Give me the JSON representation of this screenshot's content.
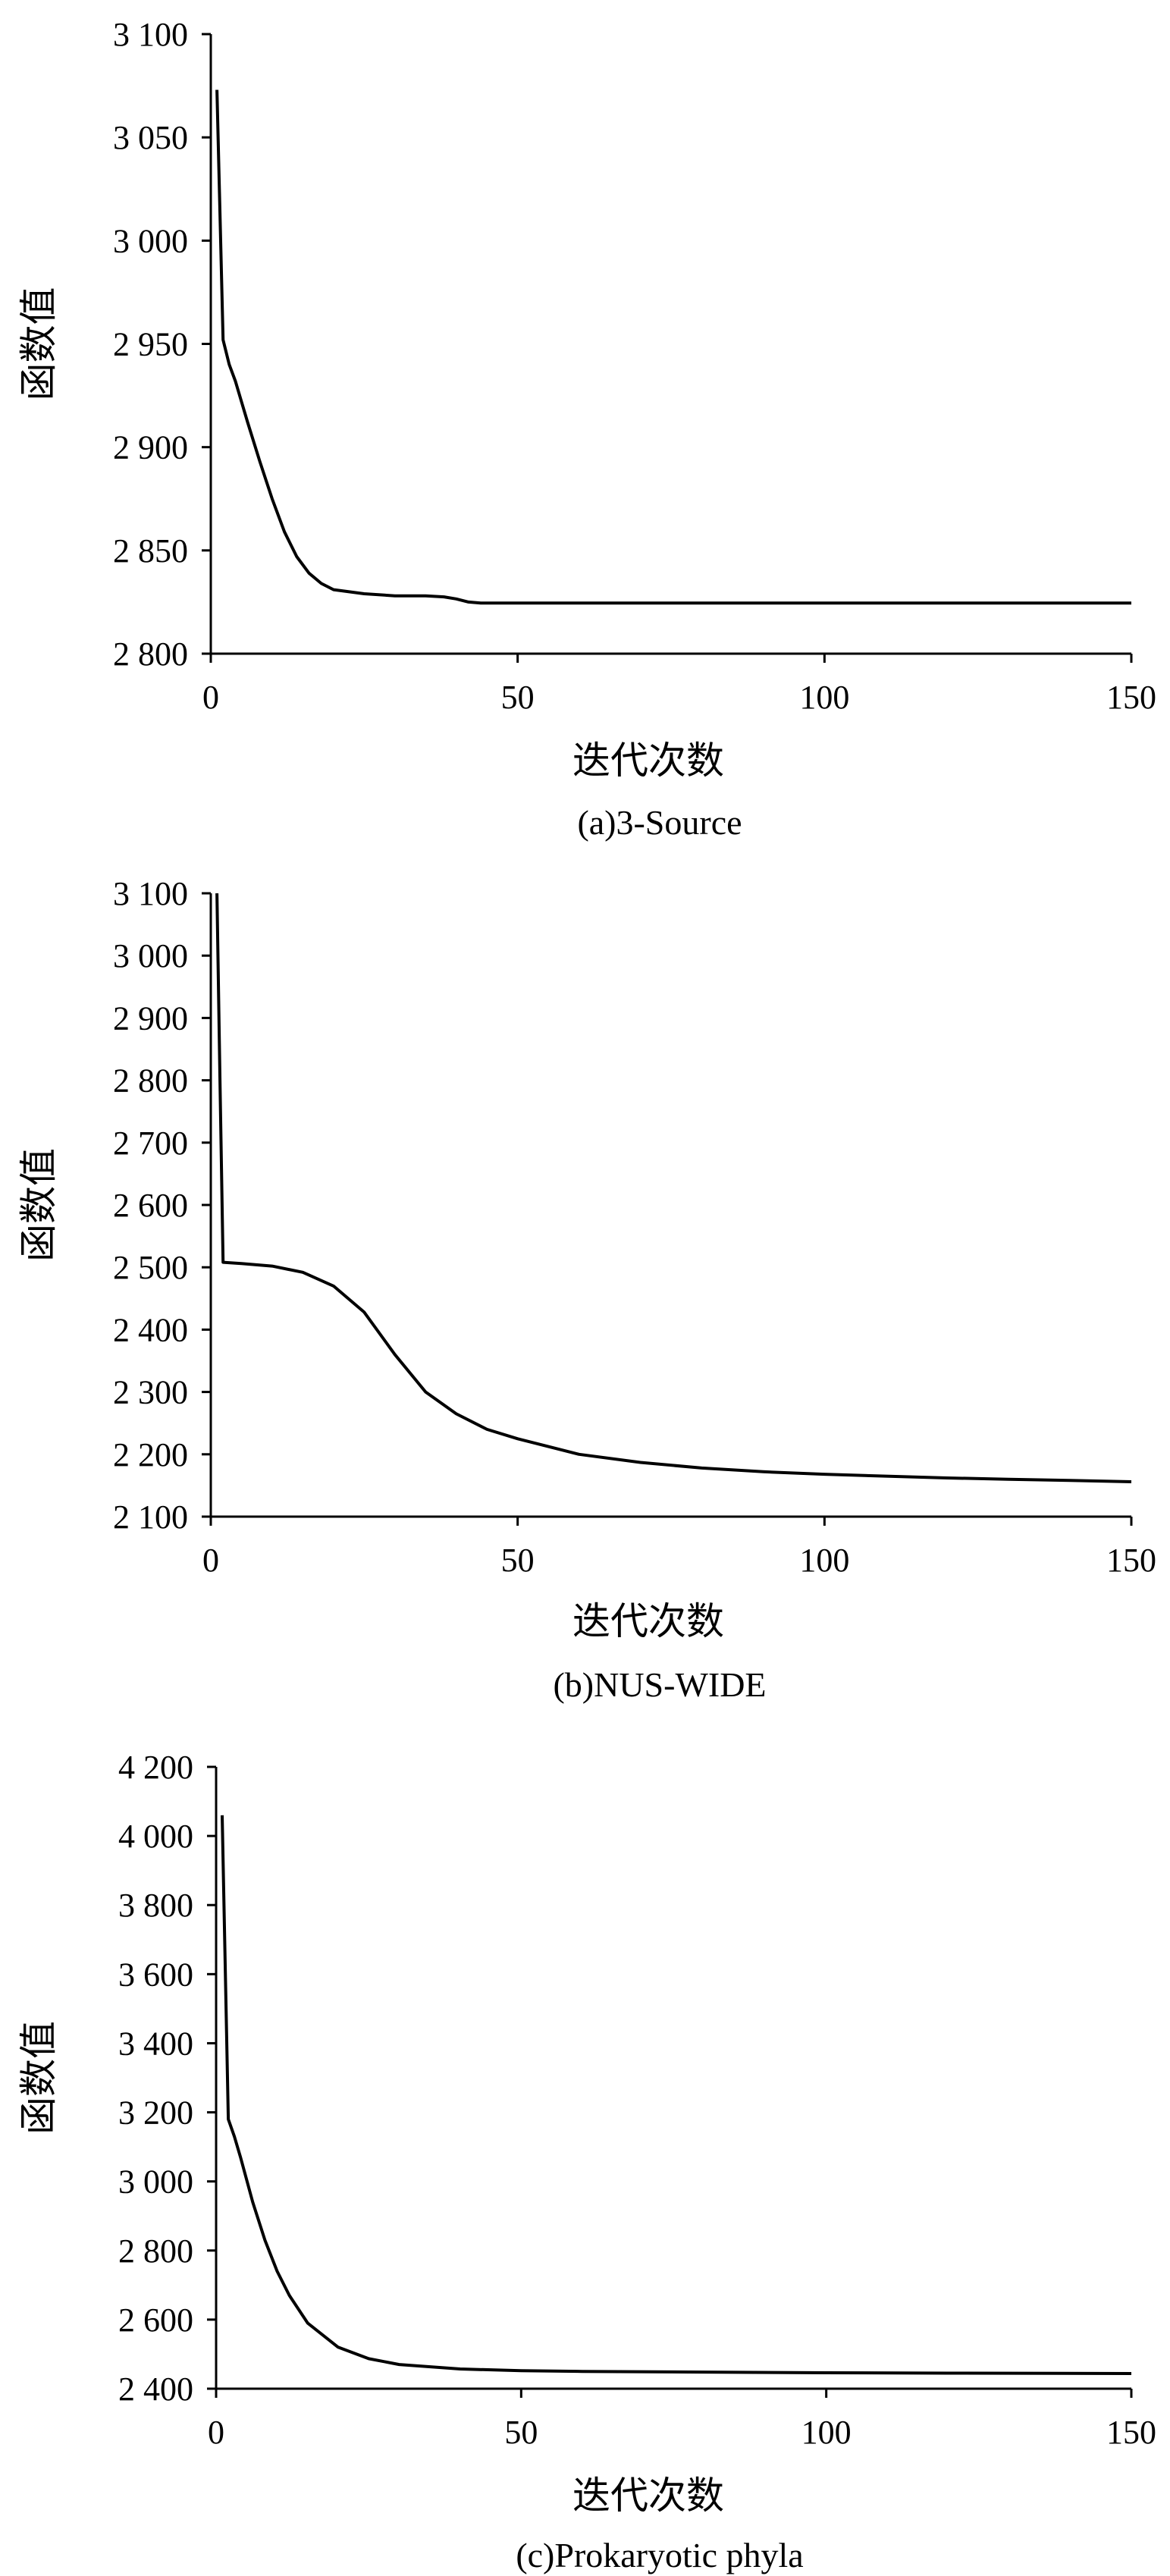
{
  "chart_data": [
    {
      "type": "line",
      "title": "(a)3-Source",
      "xlabel": "迭代次数",
      "ylabel": "函数值",
      "xlim": [
        0,
        150
      ],
      "ylim": [
        2800,
        3100
      ],
      "xticks": [
        0,
        50,
        100,
        150
      ],
      "xtick_labels": [
        "0",
        "50",
        "100",
        "150"
      ],
      "yticks": [
        2800,
        2850,
        2900,
        2950,
        3000,
        3050,
        3100
      ],
      "ytick_labels": [
        "2 800",
        "2 850",
        "2 900",
        "2 950",
        "3 000",
        "3 050",
        "3 100"
      ],
      "grid": false,
      "series": [
        {
          "x": [
            1,
            2,
            3,
            4,
            5,
            6,
            8,
            10,
            12,
            14,
            16,
            18,
            20,
            25,
            30,
            35,
            38,
            40,
            42,
            44,
            50,
            60,
            80,
            100,
            120,
            150
          ],
          "y": [
            3073,
            2952,
            2940,
            2932,
            2922,
            2912,
            2893,
            2875,
            2859,
            2847,
            2839,
            2834,
            2831,
            2829,
            2828,
            2828,
            2827.5,
            2826.5,
            2825,
            2824.5,
            2824.5,
            2824.5,
            2824.5,
            2824.5,
            2824.5,
            2824.5
          ]
        }
      ]
    },
    {
      "type": "line",
      "title": "(b)NUS-WIDE",
      "xlabel": "迭代次数",
      "ylabel": "函数值",
      "xlim": [
        0,
        150
      ],
      "ylim": [
        2100,
        3100
      ],
      "xticks": [
        0,
        50,
        100,
        150
      ],
      "xtick_labels": [
        "0",
        "50",
        "100",
        "150"
      ],
      "yticks": [
        2100,
        2200,
        2300,
        2400,
        2500,
        2600,
        2700,
        2800,
        2900,
        3000,
        3100
      ],
      "ytick_labels": [
        "2 100",
        "2 200",
        "2 300",
        "2 400",
        "2 500",
        "2 600",
        "2 700",
        "2 800",
        "2 900",
        "3 000",
        "3 100"
      ],
      "grid": false,
      "series": [
        {
          "x": [
            1,
            1.5,
            2,
            5,
            10,
            15,
            20,
            25,
            30,
            35,
            40,
            45,
            50,
            60,
            70,
            80,
            90,
            100,
            110,
            120,
            130,
            140,
            150
          ],
          "y": [
            3100,
            2800,
            2508,
            2506,
            2502,
            2492,
            2470,
            2428,
            2360,
            2300,
            2265,
            2240,
            2225,
            2200,
            2187,
            2178,
            2172,
            2168,
            2165,
            2162,
            2160,
            2158,
            2156
          ]
        }
      ]
    },
    {
      "type": "line",
      "title": "(c)Prokaryotic phyla",
      "xlabel": "迭代次数",
      "ylabel": "函数值",
      "xlim": [
        0,
        150
      ],
      "ylim": [
        2400,
        4200
      ],
      "xticks": [
        0,
        50,
        100,
        150
      ],
      "xtick_labels": [
        "0",
        "50",
        "100",
        "150"
      ],
      "yticks": [
        2400,
        2600,
        2800,
        3000,
        3200,
        3400,
        3600,
        3800,
        4000,
        4200
      ],
      "ytick_labels": [
        "2 400",
        "2 600",
        "2 800",
        "3 000",
        "3 200",
        "3 400",
        "3 600",
        "3 800",
        "4 000",
        "4 200"
      ],
      "grid": false,
      "series": [
        {
          "x": [
            1,
            2,
            3,
            4,
            6,
            8,
            10,
            12,
            15,
            20,
            25,
            30,
            40,
            50,
            60,
            80,
            100,
            120,
            150
          ],
          "y": [
            4060,
            3180,
            3130,
            3070,
            2940,
            2830,
            2740,
            2670,
            2590,
            2520,
            2487,
            2470,
            2457,
            2452,
            2450,
            2448,
            2446,
            2445,
            2444
          ]
        }
      ]
    }
  ]
}
